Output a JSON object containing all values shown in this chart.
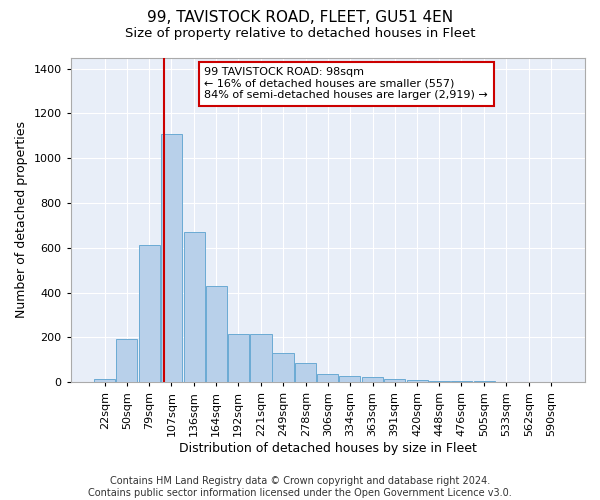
{
  "title": "99, TAVISTOCK ROAD, FLEET, GU51 4EN",
  "subtitle": "Size of property relative to detached houses in Fleet",
  "xlabel": "Distribution of detached houses by size in Fleet",
  "ylabel": "Number of detached properties",
  "bar_color": "#b8d0ea",
  "bar_edge_color": "#6aaad4",
  "bg_color": "#e8eef8",
  "grid_color": "#ffffff",
  "annotation_box_color": "#cc0000",
  "vline_color": "#cc0000",
  "vline_x": 98,
  "annotation_text": "99 TAVISTOCK ROAD: 98sqm\n← 16% of detached houses are smaller (557)\n84% of semi-detached houses are larger (2,919) →",
  "categories": [
    "22sqm",
    "50sqm",
    "79sqm",
    "107sqm",
    "136sqm",
    "164sqm",
    "192sqm",
    "221sqm",
    "249sqm",
    "278sqm",
    "306sqm",
    "334sqm",
    "363sqm",
    "391sqm",
    "420sqm",
    "448sqm",
    "476sqm",
    "505sqm",
    "533sqm",
    "562sqm",
    "590sqm"
  ],
  "bin_edges": [
    22,
    50,
    79,
    107,
    136,
    164,
    192,
    221,
    249,
    278,
    306,
    334,
    363,
    391,
    420,
    448,
    476,
    505,
    533,
    562,
    590
  ],
  "bin_width": 27,
  "values": [
    15,
    195,
    615,
    1110,
    670,
    430,
    215,
    215,
    130,
    85,
    35,
    30,
    25,
    15,
    10,
    5,
    5,
    5,
    2,
    2,
    0
  ],
  "ylim": [
    0,
    1450
  ],
  "yticks": [
    0,
    200,
    400,
    600,
    800,
    1000,
    1200,
    1400
  ],
  "footer_text": "Contains HM Land Registry data © Crown copyright and database right 2024.\nContains public sector information licensed under the Open Government Licence v3.0.",
  "title_fontsize": 11,
  "subtitle_fontsize": 9.5,
  "xlabel_fontsize": 9,
  "ylabel_fontsize": 9,
  "tick_fontsize": 8,
  "footer_fontsize": 7
}
